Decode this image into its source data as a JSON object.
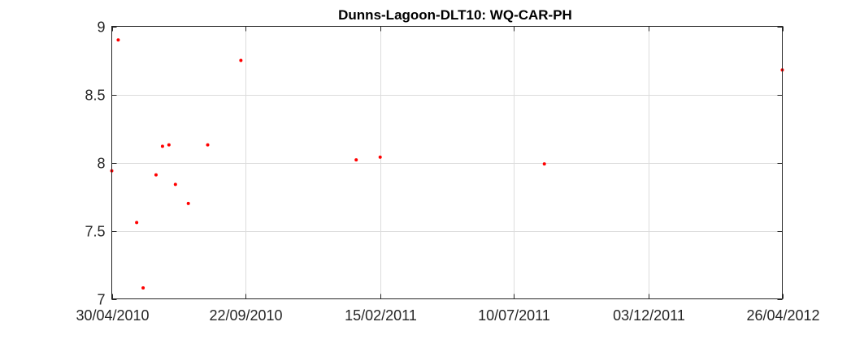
{
  "chart_data": {
    "type": "scatter",
    "title": "Dunns-Lagoon-DLT10: WQ-CAR-PH",
    "xlabel": "",
    "ylabel": "",
    "x_type": "date",
    "xlim": [
      "2010-04-30",
      "2012-04-26"
    ],
    "ylim": [
      7,
      9
    ],
    "x_ticks": [
      "2010-04-30",
      "2010-09-22",
      "2011-02-15",
      "2011-07-10",
      "2011-12-03",
      "2012-04-26"
    ],
    "x_tick_labels": [
      "30/04/2010",
      "22/09/2010",
      "15/02/2011",
      "10/07/2011",
      "03/12/2011",
      "26/04/2012"
    ],
    "y_ticks": [
      7,
      7.5,
      8,
      8.5,
      9
    ],
    "y_tick_labels": [
      "7",
      "7.5",
      "8",
      "8.5",
      "9"
    ],
    "grid": true,
    "marker_color": "#ff0000",
    "series": [
      {
        "points": [
          {
            "x": "2010-04-30",
            "y": 7.94
          },
          {
            "x": "2010-05-07",
            "y": 8.9
          },
          {
            "x": "2010-05-27",
            "y": 7.56
          },
          {
            "x": "2010-06-03",
            "y": 7.08
          },
          {
            "x": "2010-06-17",
            "y": 7.91
          },
          {
            "x": "2010-06-24",
            "y": 8.12
          },
          {
            "x": "2010-07-01",
            "y": 8.13
          },
          {
            "x": "2010-07-08",
            "y": 7.84
          },
          {
            "x": "2010-07-22",
            "y": 7.7
          },
          {
            "x": "2010-08-12",
            "y": 8.13
          },
          {
            "x": "2010-09-17",
            "y": 8.75
          },
          {
            "x": "2011-01-20",
            "y": 8.02
          },
          {
            "x": "2011-02-15",
            "y": 8.04
          },
          {
            "x": "2011-08-12",
            "y": 7.99
          },
          {
            "x": "2012-04-26",
            "y": 8.68
          }
        ]
      }
    ]
  }
}
